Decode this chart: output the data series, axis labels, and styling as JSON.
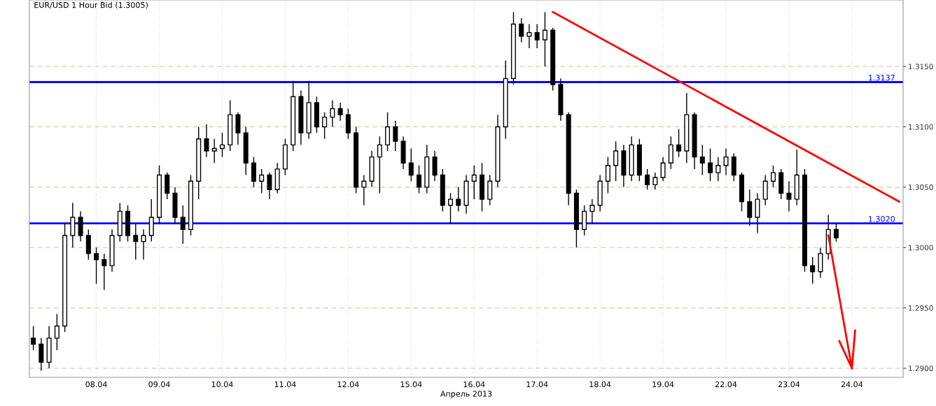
{
  "chart_data": {
    "type": "candlestick",
    "title": "EUR/USD 1 Hour Bid (1.3005)",
    "xlabel": "Апрель 2013",
    "categories": [
      null,
      null,
      null,
      null,
      null,
      null,
      null,
      null,
      "08.04",
      null,
      null,
      null,
      null,
      null,
      null,
      null,
      "09.04",
      null,
      null,
      null,
      null,
      null,
      null,
      null,
      "10.04",
      null,
      null,
      null,
      null,
      null,
      null,
      null,
      "11.04",
      null,
      null,
      null,
      null,
      null,
      null,
      null,
      "12.04",
      null,
      null,
      null,
      null,
      null,
      null,
      null,
      "15.04",
      null,
      null,
      null,
      null,
      null,
      null,
      null,
      "16.04",
      null,
      null,
      null,
      null,
      null,
      null,
      null,
      "17.04",
      null,
      null,
      null,
      null,
      null,
      null,
      null,
      "18.04",
      null,
      null,
      null,
      null,
      null,
      null,
      null,
      "19.04",
      null,
      null,
      null,
      null,
      null,
      null,
      null,
      "22.04",
      null,
      null,
      null,
      null,
      null,
      null,
      null,
      "23.04",
      null,
      null,
      null,
      null,
      null,
      null,
      null,
      "24.04",
      null,
      null,
      null,
      null,
      null,
      null
    ],
    "ohlc": [
      [
        1.2925,
        1.2935,
        1.2915,
        1.292
      ],
      [
        1.292,
        1.2925,
        1.2898,
        1.2905
      ],
      [
        1.2905,
        1.2935,
        1.29,
        1.2925
      ],
      [
        1.2925,
        1.2945,
        1.2915,
        1.2935
      ],
      [
        1.2935,
        1.302,
        1.293,
        1.301
      ],
      [
        1.301,
        1.3037,
        1.3,
        1.3025
      ],
      [
        1.3025,
        1.303,
        1.3005,
        1.301
      ],
      [
        1.301,
        1.3015,
        1.299,
        1.2995
      ],
      [
        1.2995,
        1.3,
        1.297,
        1.299
      ],
      [
        1.299,
        1.2995,
        1.2965,
        1.2985
      ],
      [
        1.2985,
        1.3015,
        1.298,
        1.301
      ],
      [
        1.301,
        1.3037,
        1.3005,
        1.303
      ],
      [
        1.303,
        1.3035,
        1.3005,
        1.301
      ],
      [
        1.301,
        1.302,
        1.299,
        1.3005
      ],
      [
        1.3005,
        1.3015,
        1.299,
        1.301
      ],
      [
        1.301,
        1.304,
        1.3005,
        1.3025
      ],
      [
        1.3025,
        1.3068,
        1.302,
        1.306
      ],
      [
        1.306,
        1.3062,
        1.304,
        1.3045
      ],
      [
        1.3045,
        1.305,
        1.302,
        1.3025
      ],
      [
        1.3025,
        1.3035,
        1.3003,
        1.3015
      ],
      [
        1.3015,
        1.306,
        1.301,
        1.3055
      ],
      [
        1.3055,
        1.31,
        1.304,
        1.309
      ],
      [
        1.309,
        1.3102,
        1.3075,
        1.308
      ],
      [
        1.308,
        1.309,
        1.307,
        1.3082
      ],
      [
        1.3082,
        1.3095,
        1.3075,
        1.3085
      ],
      [
        1.3085,
        1.3122,
        1.308,
        1.311
      ],
      [
        1.311,
        1.3112,
        1.3085,
        1.3095
      ],
      [
        1.3095,
        1.31,
        1.306,
        1.307
      ],
      [
        1.307,
        1.3075,
        1.305,
        1.3055
      ],
      [
        1.3055,
        1.3065,
        1.3045,
        1.306
      ],
      [
        1.306,
        1.3062,
        1.304,
        1.3048
      ],
      [
        1.3048,
        1.307,
        1.3045,
        1.3065
      ],
      [
        1.3065,
        1.309,
        1.306,
        1.3085
      ],
      [
        1.3085,
        1.3138,
        1.308,
        1.3125
      ],
      [
        1.3125,
        1.313,
        1.3085,
        1.3095
      ],
      [
        1.3095,
        1.3138,
        1.309,
        1.312
      ],
      [
        1.312,
        1.3125,
        1.3095,
        1.31
      ],
      [
        1.31,
        1.3112,
        1.309,
        1.3108
      ],
      [
        1.3108,
        1.3122,
        1.31,
        1.3115
      ],
      [
        1.3115,
        1.312,
        1.3105,
        1.311
      ],
      [
        1.311,
        1.3115,
        1.309,
        1.3095
      ],
      [
        1.3095,
        1.31,
        1.3045,
        1.305
      ],
      [
        1.305,
        1.306,
        1.3035,
        1.3055
      ],
      [
        1.3055,
        1.308,
        1.305,
        1.3075
      ],
      [
        1.3075,
        1.3092,
        1.3045,
        1.3085
      ],
      [
        1.3085,
        1.3112,
        1.308,
        1.31
      ],
      [
        1.31,
        1.3105,
        1.308,
        1.3088
      ],
      [
        1.3088,
        1.3092,
        1.3065,
        1.307
      ],
      [
        1.307,
        1.3082,
        1.3055,
        1.306
      ],
      [
        1.306,
        1.3068,
        1.3045,
        1.305
      ],
      [
        1.305,
        1.3085,
        1.3045,
        1.3075
      ],
      [
        1.3075,
        1.308,
        1.3055,
        1.306
      ],
      [
        1.306,
        1.3065,
        1.303,
        1.3035
      ],
      [
        1.3035,
        1.3045,
        1.302,
        1.304
      ],
      [
        1.304,
        1.305,
        1.303,
        1.3035
      ],
      [
        1.3035,
        1.306,
        1.3028,
        1.3055
      ],
      [
        1.3055,
        1.3068,
        1.304,
        1.306
      ],
      [
        1.306,
        1.307,
        1.303,
        1.304
      ],
      [
        1.304,
        1.306,
        1.3035,
        1.3055
      ],
      [
        1.3055,
        1.311,
        1.305,
        1.31
      ],
      [
        1.31,
        1.3155,
        1.309,
        1.314
      ],
      [
        1.314,
        1.3195,
        1.3135,
        1.3185
      ],
      [
        1.3185,
        1.319,
        1.317,
        1.3175
      ],
      [
        1.3175,
        1.3185,
        1.3165,
        1.3178
      ],
      [
        1.3178,
        1.3185,
        1.3165,
        1.3172
      ],
      [
        1.3172,
        1.3195,
        1.315,
        1.318
      ],
      [
        1.318,
        1.3182,
        1.313,
        1.3135
      ],
      [
        1.3135,
        1.314,
        1.3105,
        1.311
      ],
      [
        1.311,
        1.3112,
        1.3035,
        1.3045
      ],
      [
        1.3045,
        1.3048,
        1.3,
        1.3015
      ],
      [
        1.3015,
        1.3035,
        1.301,
        1.303
      ],
      [
        1.303,
        1.304,
        1.302,
        1.3035
      ],
      [
        1.3035,
        1.306,
        1.303,
        1.3055
      ],
      [
        1.3055,
        1.3075,
        1.3045,
        1.3068
      ],
      [
        1.3068,
        1.3088,
        1.3055,
        1.308
      ],
      [
        1.308,
        1.3085,
        1.305,
        1.306
      ],
      [
        1.306,
        1.3092,
        1.3055,
        1.3085
      ],
      [
        1.3085,
        1.309,
        1.3055,
        1.306
      ],
      [
        1.306,
        1.3065,
        1.3048,
        1.3052
      ],
      [
        1.3052,
        1.3062,
        1.3048,
        1.3058
      ],
      [
        1.3058,
        1.3075,
        1.3055,
        1.307
      ],
      [
        1.307,
        1.3092,
        1.3065,
        1.3085
      ],
      [
        1.3085,
        1.3098,
        1.3075,
        1.308
      ],
      [
        1.308,
        1.3128,
        1.307,
        1.311
      ],
      [
        1.311,
        1.3112,
        1.3065,
        1.3075
      ],
      [
        1.3075,
        1.3085,
        1.306,
        1.307
      ],
      [
        1.307,
        1.3082,
        1.3055,
        1.3062
      ],
      [
        1.3062,
        1.3075,
        1.3055,
        1.3068
      ],
      [
        1.3068,
        1.3082,
        1.306,
        1.3075
      ],
      [
        1.3075,
        1.3078,
        1.3055,
        1.306
      ],
      [
        1.306,
        1.3062,
        1.303,
        1.3038
      ],
      [
        1.3038,
        1.3048,
        1.3018,
        1.3025
      ],
      [
        1.3025,
        1.3045,
        1.3012,
        1.304
      ],
      [
        1.304,
        1.306,
        1.3035,
        1.3055
      ],
      [
        1.3055,
        1.3068,
        1.305,
        1.3062
      ],
      [
        1.3062,
        1.3065,
        1.304,
        1.3045
      ],
      [
        1.3045,
        1.3055,
        1.303,
        1.304
      ],
      [
        1.304,
        1.3081,
        1.3035,
        1.306
      ],
      [
        1.306,
        1.3065,
        1.298,
        1.2985
      ],
      [
        1.2985,
        1.2992,
        1.297,
        1.298
      ],
      [
        1.298,
        1.3,
        1.2975,
        1.2995
      ],
      [
        1.2995,
        1.3027,
        1.299,
        1.3015
      ],
      [
        1.3015,
        1.302,
        1.3005,
        1.3008
      ],
      null,
      null,
      null,
      null,
      null,
      null,
      null,
      null
    ],
    "series": [
      {
        "type": "line",
        "color": "#ff0000",
        "values": [
          null,
          null,
          null,
          null,
          null,
          null,
          null,
          null,
          null,
          null,
          null,
          null,
          null,
          null,
          null,
          null,
          null,
          null,
          null,
          null,
          null,
          null,
          null,
          null,
          null,
          null,
          null,
          null,
          null,
          null,
          null,
          null,
          null,
          null,
          null,
          null,
          null,
          null,
          null,
          null,
          null,
          null,
          null,
          null,
          null,
          null,
          null,
          null,
          null,
          null,
          null,
          null,
          null,
          null,
          null,
          null,
          null,
          null,
          null,
          null,
          null,
          null,
          null,
          null,
          null,
          null,
          1.3195,
          null,
          null,
          null,
          null,
          null,
          null,
          null,
          null,
          null,
          null,
          null,
          null,
          null,
          null,
          null,
          null,
          null,
          null,
          null,
          null,
          null,
          null,
          null,
          null,
          null,
          null,
          null,
          null,
          null,
          null,
          null,
          null,
          null,
          null,
          null,
          null,
          null,
          null,
          null,
          null,
          null,
          null,
          null,
          1.3038
        ]
      },
      {
        "type": "line",
        "color": "#ff0000",
        "values": [
          null,
          null,
          null,
          null,
          null,
          null,
          null,
          null,
          null,
          null,
          null,
          null,
          null,
          null,
          null,
          null,
          null,
          null,
          null,
          null,
          null,
          null,
          null,
          null,
          null,
          null,
          null,
          null,
          null,
          null,
          null,
          null,
          null,
          null,
          null,
          null,
          null,
          null,
          null,
          null,
          null,
          null,
          null,
          null,
          null,
          null,
          null,
          null,
          null,
          null,
          null,
          null,
          null,
          null,
          null,
          null,
          null,
          null,
          null,
          null,
          null,
          null,
          null,
          null,
          null,
          null,
          null,
          null,
          null,
          null,
          null,
          null,
          null,
          null,
          null,
          null,
          null,
          null,
          null,
          null,
          null,
          null,
          null,
          null,
          null,
          null,
          null,
          null,
          null,
          null,
          null,
          null,
          null,
          null,
          null,
          null,
          null,
          null,
          null,
          null,
          null,
          1.301,
          null,
          null,
          1.29,
          null,
          null,
          null,
          null,
          null,
          null
        ]
      }
    ],
    "ylim": [
      1.28925,
      1.3205
    ],
    "yticks": [
      {
        "value": 1.29,
        "label": "1.2900"
      },
      {
        "value": 1.295,
        "label": "1.2950"
      },
      {
        "value": 1.3,
        "label": "1.3000"
      },
      {
        "value": 1.305,
        "label": "1.3050"
      },
      {
        "value": 1.31,
        "label": "1.3100"
      },
      {
        "value": 1.315,
        "label": "1.3150"
      }
    ],
    "ref_lines": [
      {
        "axis": "y",
        "value": 1.3137,
        "label": "1.3137",
        "color": "#0000ff"
      },
      {
        "axis": "y",
        "value": 1.302,
        "label": "1.3020",
        "color": "#0000ff"
      }
    ],
    "grid": true
  }
}
